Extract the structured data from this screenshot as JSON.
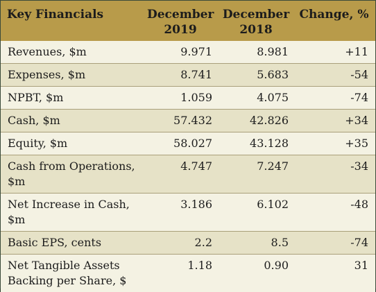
{
  "table": {
    "headers": [
      "Key Financials",
      "December 2019",
      "December 2018",
      "Change, %"
    ],
    "header_lines": {
      "col1": [
        "December",
        "2019"
      ],
      "col2": [
        "December",
        "2018"
      ]
    },
    "rows": [
      {
        "label": "Revenues, $m",
        "y2019": "9.971",
        "y2018": "8.981",
        "change": "+11"
      },
      {
        "label": "Expenses, $m",
        "y2019": "8.741",
        "y2018": "5.683",
        "change": "-54"
      },
      {
        "label": "NPBT, $m",
        "y2019": "1.059",
        "y2018": "4.075",
        "change": "-74"
      },
      {
        "label": "Cash, $m",
        "y2019": "57.432",
        "y2018": "42.826",
        "change": "+34"
      },
      {
        "label": "Equity, $m",
        "y2019": "58.027",
        "y2018": "43.128",
        "change": "+35"
      },
      {
        "label": "Cash from Operations, $m",
        "y2019": "4.747",
        "y2018": "7.247",
        "change": "-34"
      },
      {
        "label": "Net Increase in Cash, $m",
        "y2019": "3.186",
        "y2018": "6.102",
        "change": "-48"
      },
      {
        "label": "Basic EPS, cents",
        "y2019": "2.2",
        "y2018": "8.5",
        "change": "-74"
      },
      {
        "label": "Net Tangible Assets Backing per Share, $",
        "y2019": "1.18",
        "y2018": "0.90",
        "change": "31"
      }
    ]
  },
  "colors": {
    "header_bg": "#b89b4a",
    "row_light": "#f4f2e3",
    "row_dark": "#e6e2c7"
  }
}
